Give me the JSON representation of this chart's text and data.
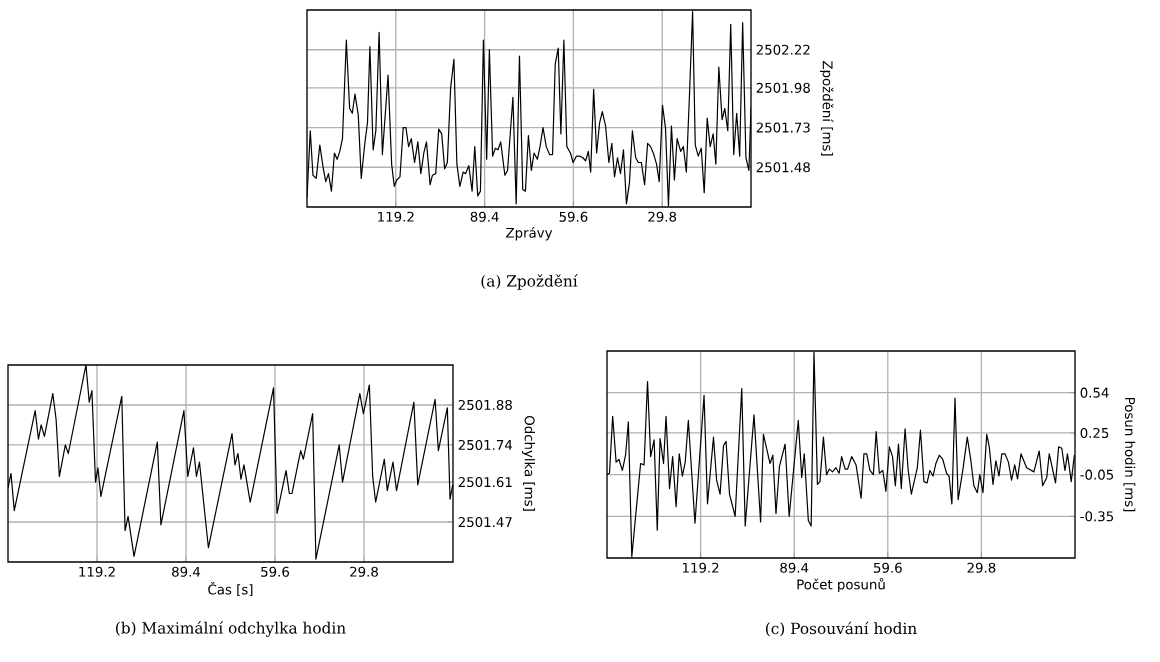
{
  "chart_data": [
    {
      "type": "line",
      "title": "(a) Zpoždění",
      "xlabel": "Zprávy",
      "ylabel": "Zpoždění [ms]",
      "color": "#000000",
      "grid": true,
      "xlim": [
        149,
        0
      ],
      "ylim": [
        2501.23,
        2502.47
      ],
      "xticks": [
        119.2,
        89.4,
        59.6,
        29.8
      ],
      "yticks": [
        2501.48,
        2501.73,
        2501.98,
        2502.22
      ],
      "x": [
        149.0,
        147.9,
        147.0,
        145.9,
        144.7,
        143.6,
        142.7,
        141.8,
        140.8,
        139.8,
        138.9,
        138.0,
        137.1,
        135.8,
        134.7,
        133.8,
        132.9,
        131.8,
        130.8,
        129.6,
        128.7,
        127.9,
        126.8,
        125.9,
        124.8,
        123.7,
        121.8,
        120.6,
        119.7,
        118.9,
        117.8,
        116.7,
        115.8,
        114.9,
        114.0,
        112.9,
        111.8,
        110.8,
        109.8,
        108.9,
        107.7,
        106.9,
        105.8,
        104.8,
        103.8,
        102.8,
        101.9,
        100.8,
        99.7,
        98.7,
        97.7,
        96.6,
        95.8,
        94.7,
        93.6,
        92.7,
        91.7,
        90.8,
        89.8,
        88.7,
        87.8,
        86.7,
        85.8,
        84.9,
        84.0,
        82.6,
        81.7,
        79.9,
        78.8,
        77.7,
        76.6,
        75.7,
        74.7,
        73.7,
        72.8,
        71.7,
        70.8,
        69.8,
        68.7,
        67.6,
        66.6,
        65.7,
        64.7,
        63.8,
        62.8,
        61.8,
        60.6,
        59.7,
        58.6,
        57.5,
        56.4,
        55.5,
        54.6,
        53.8,
        52.8,
        51.8,
        50.8,
        49.9,
        48.8,
        47.7,
        46.7,
        45.8,
        44.8,
        43.8,
        42.8,
        41.8,
        40.8,
        39.8,
        38.7,
        37.8,
        36.8,
        35.7,
        34.7,
        33.7,
        32.6,
        31.7,
        30.8,
        29.7,
        28.7,
        27.7,
        26.7,
        25.7,
        24.8,
        23.6,
        22.7,
        21.7,
        20.7,
        19.6,
        18.7,
        17.7,
        16.7,
        15.7,
        14.7,
        13.7,
        12.7,
        11.8,
        10.8,
        9.7,
        8.8,
        7.8,
        6.8,
        5.8,
        4.8,
        3.8,
        2.8,
        1.7,
        0.7,
        0.0
      ],
      "values": [
        2501.29,
        2501.71,
        2501.43,
        2501.41,
        2501.62,
        2501.48,
        2501.39,
        2501.44,
        2501.33,
        2501.57,
        2501.53,
        2501.58,
        2501.66,
        2502.28,
        2501.85,
        2501.82,
        2501.94,
        2501.81,
        2501.41,
        2501.63,
        2501.76,
        2502.24,
        2501.59,
        2501.71,
        2502.33,
        2501.56,
        2502.06,
        2501.5,
        2501.36,
        2501.4,
        2501.42,
        2501.73,
        2501.73,
        2501.61,
        2501.66,
        2501.51,
        2501.64,
        2501.44,
        2501.57,
        2501.64,
        2501.37,
        2501.43,
        2501.44,
        2501.72,
        2501.69,
        2501.47,
        2501.51,
        2501.98,
        2502.16,
        2501.5,
        2501.36,
        2501.45,
        2501.44,
        2501.49,
        2501.33,
        2501.61,
        2501.3,
        2501.33,
        2502.28,
        2501.53,
        2502.22,
        2501.55,
        2501.6,
        2501.59,
        2501.64,
        2501.43,
        2501.46,
        2501.92,
        2501.25,
        2502.18,
        2501.34,
        2501.33,
        2501.68,
        2501.46,
        2501.57,
        2501.53,
        2501.61,
        2501.73,
        2501.61,
        2501.56,
        2501.56,
        2502.13,
        2502.23,
        2501.69,
        2502.28,
        2501.61,
        2501.57,
        2501.51,
        2501.55,
        2501.55,
        2501.54,
        2501.52,
        2501.58,
        2501.45,
        2501.97,
        2501.57,
        2501.76,
        2501.83,
        2501.74,
        2501.51,
        2501.63,
        2501.42,
        2501.54,
        2501.44,
        2501.59,
        2501.25,
        2501.38,
        2501.71,
        2501.54,
        2501.51,
        2501.51,
        2501.37,
        2501.63,
        2501.61,
        2501.56,
        2501.5,
        2501.39,
        2501.87,
        2501.73,
        2501.24,
        2501.74,
        2501.4,
        2501.66,
        2501.58,
        2501.61,
        2501.45,
        2501.91,
        2502.46,
        2501.62,
        2501.55,
        2501.6,
        2501.32,
        2501.79,
        2501.61,
        2501.69,
        2501.5,
        2502.11,
        2501.78,
        2501.85,
        2501.71,
        2502.38,
        2501.56,
        2501.82,
        2501.55,
        2502.39,
        2501.54,
        2501.46,
        2501.85
      ]
    },
    {
      "type": "line",
      "title": "(b) Maximální odchylka hodin",
      "xlabel": "Čas [s]",
      "ylabel": "Odchylka [ms]",
      "color": "#000000",
      "grid": true,
      "xlim": [
        149,
        0
      ],
      "ylim": [
        2501.33,
        2502.02
      ],
      "xticks": [
        119.2,
        89.4,
        59.6,
        29.8
      ],
      "yticks": [
        2501.47,
        2501.61,
        2501.74,
        2501.88
      ],
      "x": [
        149.0,
        148.0,
        146.9,
        139.9,
        138.8,
        137.9,
        136.8,
        134.0,
        132.9,
        131.8,
        129.8,
        128.8,
        122.9,
        121.8,
        120.9,
        119.7,
        118.9,
        117.9,
        110.9,
        109.8,
        108.8,
        106.8,
        99.0,
        97.8,
        90.1,
        88.8,
        86.9,
        85.9,
        84.9,
        81.9,
        74.0,
        73.0,
        72.0,
        71.0,
        70.0,
        67.9,
        60.1,
        58.9,
        55.9,
        54.8,
        53.9,
        51.0,
        50.1,
        47.0,
        45.9,
        38.1,
        37.0,
        31.2,
        30.0,
        28.0,
        26.9,
        25.9,
        23.0,
        22.0,
        20.1,
        18.9,
        13.1,
        11.8,
        6.0,
        4.9,
        1.9,
        1.0,
        0.1
      ],
      "values": [
        2501.59,
        2501.64,
        2501.51,
        2501.86,
        2501.76,
        2501.81,
        2501.77,
        2501.92,
        2501.83,
        2501.63,
        2501.74,
        2501.71,
        2502.02,
        2501.89,
        2501.93,
        2501.61,
        2501.66,
        2501.56,
        2501.91,
        2501.44,
        2501.49,
        2501.35,
        2501.75,
        2501.46,
        2501.86,
        2501.63,
        2501.73,
        2501.63,
        2501.68,
        2501.38,
        2501.78,
        2501.67,
        2501.71,
        2501.62,
        2501.67,
        2501.54,
        2501.94,
        2501.5,
        2501.65,
        2501.57,
        2501.57,
        2501.72,
        2501.69,
        2501.85,
        2501.34,
        2501.74,
        2501.61,
        2501.92,
        2501.85,
        2501.95,
        2501.63,
        2501.54,
        2501.69,
        2501.58,
        2501.68,
        2501.58,
        2501.89,
        2501.6,
        2501.9,
        2501.72,
        2501.87,
        2501.55,
        2501.6
      ]
    },
    {
      "type": "line",
      "title": "(c) Posouvání hodin",
      "xlabel": "Počet posunů",
      "ylabel": "Posun hodin [ms]",
      "color": "#000000",
      "grid": true,
      "xlim": [
        149,
        0
      ],
      "ylim": [
        -0.65,
        0.84
      ],
      "xticks": [
        119.2,
        89.4,
        59.6,
        29.8
      ],
      "yticks": [
        -0.35,
        -0.05,
        0.25,
        0.54
      ],
      "x": [
        149.0,
        148.2,
        147.2,
        146.1,
        145.2,
        144.1,
        143.1,
        142.2,
        141.1,
        138.3,
        137.2,
        136.1,
        135.1,
        134.0,
        133.0,
        132.1,
        131.0,
        130.2,
        129.1,
        128.1,
        127.0,
        126.0,
        125.0,
        124.1,
        123.1,
        121.0,
        118.1,
        117.0,
        115.1,
        114.1,
        113.0,
        111.9,
        111.1,
        110.0,
        108.2,
        106.1,
        105.0,
        102.2,
        100.1,
        99.2,
        98.1,
        97.1,
        96.2,
        95.2,
        94.1,
        92.3,
        91.0,
        88.1,
        87.0,
        86.2,
        84.9,
        84.0,
        83.1,
        82.0,
        81.2,
        80.1,
        79.1,
        78.2,
        77.2,
        76.1,
        75.1,
        74.3,
        73.2,
        72.4,
        71.1,
        69.7,
        68.1,
        67.2,
        66.3,
        65.3,
        64.2,
        63.3,
        62.3,
        61.2,
        60.2,
        59.1,
        58.1,
        57.2,
        56.2,
        55.3,
        54.1,
        53.1,
        52.1,
        50.2,
        49.2,
        48.1,
        47.1,
        46.2,
        45.2,
        44.3,
        43.2,
        42.1,
        40.9,
        40.1,
        39.2,
        38.2,
        37.2,
        35.6,
        34.3,
        33.2,
        32.2,
        31.1,
        30.3,
        29.3,
        28.1,
        27.3,
        26.1,
        25.2,
        24.2,
        23.3,
        22.3,
        21.2,
        20.2,
        19.2,
        18.3,
        17.2,
        15.4,
        13.1,
        11.4,
        10.3,
        9.0,
        8.2,
        6.2,
        5.2,
        4.2,
        3.2,
        2.4,
        1.2,
        0.2
      ],
      "values": [
        -0.05,
        -0.04,
        0.37,
        0.04,
        0.06,
        -0.02,
        0.09,
        0.33,
        -0.64,
        0.03,
        0.02,
        0.62,
        0.08,
        0.2,
        -0.45,
        0.21,
        0.03,
        0.37,
        -0.15,
        0.08,
        -0.28,
        0.1,
        -0.06,
        0.04,
        0.34,
        -0.4,
        0.52,
        -0.26,
        0.22,
        -0.09,
        -0.19,
        0.16,
        0.19,
        -0.19,
        -0.35,
        0.57,
        -0.42,
        0.38,
        -0.39,
        0.24,
        0.13,
        0.03,
        0.09,
        -0.33,
        0.01,
        0.17,
        -0.35,
        0.34,
        -0.07,
        0.1,
        -0.38,
        -0.42,
        0.83,
        -0.12,
        -0.1,
        0.22,
        -0.05,
        -0.01,
        -0.03,
        0.0,
        -0.04,
        0.08,
        -0.01,
        -0.01,
        0.08,
        0.02,
        -0.22,
        0.1,
        0.1,
        -0.02,
        -0.05,
        0.26,
        -0.04,
        -0.02,
        -0.17,
        0.15,
        0.08,
        -0.13,
        0.17,
        -0.15,
        0.28,
        -0.02,
        -0.19,
        0.0,
        0.27,
        -0.1,
        -0.11,
        -0.02,
        -0.06,
        0.03,
        0.09,
        0.06,
        -0.04,
        -0.06,
        -0.26,
        0.5,
        -0.23,
        0.0,
        0.22,
        0.06,
        -0.13,
        -0.18,
        -0.05,
        -0.18,
        0.24,
        0.15,
        -0.12,
        0.05,
        -0.06,
        0.1,
        0.1,
        0.04,
        -0.09,
        0.02,
        -0.08,
        0.1,
        0.0,
        -0.03,
        0.12,
        -0.13,
        -0.07,
        0.1,
        -0.11,
        0.15,
        0.14,
        -0.02,
        0.1,
        -0.1,
        0.09
      ]
    }
  ]
}
